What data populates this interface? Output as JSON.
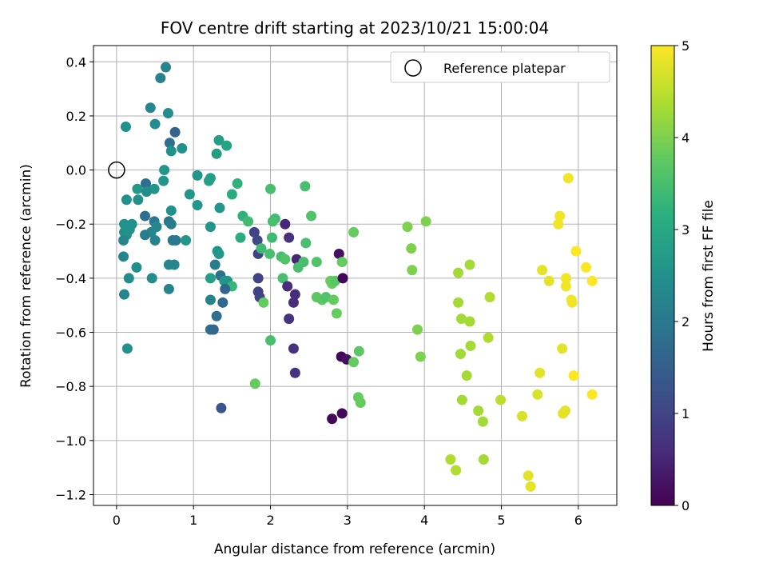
{
  "chart_data": {
    "type": "scatter",
    "title": "FOV centre drift starting at 2023/10/21 15:00:04",
    "xlabel": "Angular distance from reference (arcmin)",
    "ylabel": "Rotation from reference (arcmin)",
    "xlim": [
      -0.3,
      6.5
    ],
    "ylim": [
      -1.24,
      0.46
    ],
    "xticks": [
      0,
      1,
      2,
      3,
      4,
      5,
      6
    ],
    "xtick_labels": [
      "0",
      "1",
      "2",
      "3",
      "4",
      "5",
      "6"
    ],
    "yticks": [
      0.4,
      0.2,
      0.0,
      -0.2,
      -0.4,
      -0.6,
      -0.8,
      -1.0,
      -1.2
    ],
    "ytick_labels": [
      "0.4",
      "0.2",
      "0.0",
      "−0.2",
      "−0.4",
      "−0.6",
      "−0.8",
      "−1.0",
      "−1.2"
    ],
    "grid": true,
    "legend": {
      "label": "Reference platepar",
      "position": "upper right"
    },
    "reference_point": {
      "x": 0,
      "y": 0
    },
    "colorbar": {
      "label": "Hours from first FF file",
      "range": [
        0,
        5
      ],
      "ticks": [
        "0",
        "1",
        "2",
        "3",
        "4",
        "5"
      ],
      "colormap": "viridis"
    },
    "points": [
      [
        0.64,
        0.38,
        2.3
      ],
      [
        0.57,
        0.34,
        2.2
      ],
      [
        0.44,
        0.23,
        2.3
      ],
      [
        0.67,
        0.21,
        2.4
      ],
      [
        0.5,
        0.17,
        2.4
      ],
      [
        0.12,
        0.16,
        2.5
      ],
      [
        0.76,
        0.14,
        1.6
      ],
      [
        0.69,
        0.1,
        1.8
      ],
      [
        0.85,
        0.08,
        2.5
      ],
      [
        0.71,
        0.07,
        2.5
      ],
      [
        0.62,
        0.0,
        2.6
      ],
      [
        1.05,
        -0.02,
        2.6
      ],
      [
        0.61,
        -0.04,
        2.6
      ],
      [
        0.38,
        -0.05,
        1.8
      ],
      [
        0.27,
        -0.07,
        2.7
      ],
      [
        0.49,
        -0.07,
        2.6
      ],
      [
        0.39,
        -0.08,
        2.4
      ],
      [
        0.95,
        -0.09,
        2.6
      ],
      [
        0.28,
        -0.11,
        2.5
      ],
      [
        0.13,
        -0.11,
        2.5
      ],
      [
        1.05,
        -0.13,
        2.6
      ],
      [
        0.71,
        -0.15,
        2.5
      ],
      [
        0.37,
        -0.17,
        1.8
      ],
      [
        0.49,
        -0.19,
        2.0
      ],
      [
        0.68,
        -0.19,
        1.9
      ],
      [
        0.71,
        -0.2,
        2.1
      ],
      [
        0.52,
        -0.21,
        2.3
      ],
      [
        0.2,
        -0.2,
        2.5
      ],
      [
        0.1,
        -0.2,
        2.5
      ],
      [
        0.17,
        -0.22,
        2.5
      ],
      [
        0.1,
        -0.23,
        2.5
      ],
      [
        0.45,
        -0.23,
        2.3
      ],
      [
        0.37,
        -0.24,
        2.1
      ],
      [
        0.13,
        -0.24,
        2.5
      ],
      [
        0.09,
        -0.26,
        2.3
      ],
      [
        0.5,
        -0.26,
        2.2
      ],
      [
        0.73,
        -0.26,
        2.0
      ],
      [
        0.77,
        -0.26,
        2.0
      ],
      [
        0.9,
        -0.26,
        2.6
      ],
      [
        0.09,
        -0.32,
        2.3
      ],
      [
        0.26,
        -0.36,
        2.5
      ],
      [
        0.68,
        -0.35,
        2.3
      ],
      [
        0.75,
        -0.35,
        2.3
      ],
      [
        0.46,
        -0.4,
        2.4
      ],
      [
        0.16,
        -0.4,
        2.4
      ],
      [
        0.1,
        -0.46,
        2.3
      ],
      [
        0.68,
        -0.44,
        2.2
      ],
      [
        0.14,
        -0.66,
        2.5
      ],
      [
        1.22,
        -0.03,
        2.8
      ],
      [
        1.2,
        -0.04,
        2.8
      ],
      [
        1.33,
        0.11,
        2.8
      ],
      [
        1.3,
        0.06,
        2.8
      ],
      [
        1.43,
        0.09,
        2.9
      ],
      [
        1.34,
        -0.14,
        2.6
      ],
      [
        1.22,
        -0.21,
        2.6
      ],
      [
        1.57,
        -0.05,
        3.2
      ],
      [
        1.5,
        -0.09,
        3.1
      ],
      [
        1.64,
        -0.17,
        3.2
      ],
      [
        1.71,
        -0.19,
        3.4
      ],
      [
        1.61,
        -0.25,
        3.1
      ],
      [
        1.28,
        -0.35,
        2.1
      ],
      [
        1.33,
        -0.31,
        2.6
      ],
      [
        1.31,
        -0.3,
        2.6
      ],
      [
        1.35,
        -0.39,
        1.9
      ],
      [
        1.4,
        -0.41,
        2.6
      ],
      [
        1.44,
        -0.41,
        2.6
      ],
      [
        1.5,
        -0.43,
        3.3
      ],
      [
        1.41,
        -0.44,
        1.6
      ],
      [
        1.22,
        -0.4,
        2.8
      ],
      [
        1.22,
        -0.48,
        2.2
      ],
      [
        1.38,
        -0.49,
        1.7
      ],
      [
        1.3,
        -0.54,
        1.8
      ],
      [
        1.22,
        -0.59,
        1.8
      ],
      [
        1.26,
        -0.59,
        1.7
      ],
      [
        1.36,
        -0.88,
        1.3
      ],
      [
        1.79,
        -0.23,
        1.0
      ],
      [
        1.83,
        -0.26,
        1.1
      ],
      [
        1.84,
        -0.31,
        1.0
      ],
      [
        2.06,
        -0.18,
        3.4
      ],
      [
        2.03,
        -0.19,
        3.5
      ],
      [
        2.02,
        -0.25,
        3.4
      ],
      [
        2.19,
        -0.2,
        0.5
      ],
      [
        2.24,
        -0.25,
        0.7
      ],
      [
        1.88,
        -0.29,
        3.4
      ],
      [
        1.99,
        -0.31,
        3.5
      ],
      [
        2.14,
        -0.32,
        3.5
      ],
      [
        2.19,
        -0.33,
        3.6
      ],
      [
        2.34,
        -0.33,
        0.5
      ],
      [
        1.84,
        -0.4,
        1.0
      ],
      [
        1.84,
        -0.45,
        1.0
      ],
      [
        1.86,
        -0.47,
        1.0
      ],
      [
        1.91,
        -0.49,
        3.8
      ],
      [
        2.0,
        -0.63,
        3.5
      ],
      [
        1.8,
        -0.79,
        3.8
      ],
      [
        2.0,
        -0.07,
        3.5
      ],
      [
        2.16,
        -0.4,
        3.5
      ],
      [
        2.22,
        -0.43,
        0.6
      ],
      [
        2.32,
        -0.46,
        0.6
      ],
      [
        2.3,
        -0.49,
        0.6
      ],
      [
        2.24,
        -0.55,
        0.7
      ],
      [
        2.3,
        -0.66,
        0.7
      ],
      [
        2.32,
        -0.75,
        0.7
      ],
      [
        2.36,
        -0.36,
        3.5
      ],
      [
        2.43,
        -0.34,
        3.5
      ],
      [
        2.46,
        -0.27,
        3.5
      ],
      [
        2.45,
        -0.06,
        3.5
      ],
      [
        2.53,
        -0.17,
        3.6
      ],
      [
        2.6,
        -0.34,
        3.6
      ],
      [
        2.6,
        -0.47,
        3.7
      ],
      [
        2.67,
        -0.48,
        3.7
      ],
      [
        2.72,
        -0.47,
        3.6
      ],
      [
        2.78,
        -0.41,
        3.8
      ],
      [
        2.8,
        -0.42,
        3.8
      ],
      [
        2.84,
        -0.41,
        3.7
      ],
      [
        2.82,
        -0.48,
        3.8
      ],
      [
        2.86,
        -0.53,
        3.8
      ],
      [
        2.89,
        -0.31,
        0.2
      ],
      [
        2.94,
        -0.4,
        0.1
      ],
      [
        2.93,
        -0.34,
        3.8
      ],
      [
        2.92,
        -0.69,
        0.1
      ],
      [
        2.99,
        -0.7,
        0.2
      ],
      [
        3.08,
        -0.71,
        3.8
      ],
      [
        2.8,
        -0.92,
        0.1
      ],
      [
        2.93,
        -0.9,
        0.1
      ],
      [
        3.08,
        -0.23,
        3.8
      ],
      [
        3.15,
        -0.67,
        3.7
      ],
      [
        3.14,
        -0.84,
        3.8
      ],
      [
        3.17,
        -0.86,
        3.8
      ],
      [
        3.78,
        -0.21,
        4.0
      ],
      [
        3.83,
        -0.29,
        4.0
      ],
      [
        3.84,
        -0.37,
        4.0
      ],
      [
        3.91,
        -0.59,
        4.0
      ],
      [
        3.95,
        -0.69,
        4.0
      ],
      [
        4.02,
        -0.19,
        4.0
      ],
      [
        4.44,
        -0.38,
        4.3
      ],
      [
        4.44,
        -0.49,
        4.3
      ],
      [
        4.48,
        -0.55,
        4.3
      ],
      [
        4.47,
        -0.68,
        4.3
      ],
      [
        4.49,
        -0.85,
        4.3
      ],
      [
        4.59,
        -0.35,
        4.3
      ],
      [
        4.59,
        -0.56,
        4.3
      ],
      [
        4.6,
        -0.65,
        4.3
      ],
      [
        4.55,
        -0.76,
        4.3
      ],
      [
        4.7,
        -0.89,
        4.3
      ],
      [
        4.76,
        -0.93,
        4.3
      ],
      [
        4.83,
        -0.62,
        4.4
      ],
      [
        4.85,
        -0.47,
        4.4
      ],
      [
        4.99,
        -0.85,
        4.5
      ],
      [
        4.34,
        -1.07,
        4.4
      ],
      [
        4.41,
        -1.11,
        4.4
      ],
      [
        4.77,
        -1.07,
        4.3
      ],
      [
        5.27,
        -0.91,
        4.7
      ],
      [
        5.35,
        -1.13,
        4.8
      ],
      [
        5.38,
        -1.17,
        4.8
      ],
      [
        5.47,
        -0.83,
        4.7
      ],
      [
        5.5,
        -0.75,
        4.8
      ],
      [
        5.53,
        -0.37,
        4.8
      ],
      [
        5.62,
        -0.41,
        4.8
      ],
      [
        5.76,
        -0.17,
        4.9
      ],
      [
        5.74,
        -0.2,
        4.9
      ],
      [
        5.79,
        -0.66,
        4.8
      ],
      [
        5.8,
        -0.9,
        4.8
      ],
      [
        5.83,
        -0.89,
        4.8
      ],
      [
        5.84,
        -0.4,
        4.9
      ],
      [
        5.84,
        -0.43,
        4.9
      ],
      [
        5.87,
        -0.03,
        4.9
      ],
      [
        5.91,
        -0.48,
        4.9
      ],
      [
        5.92,
        -0.49,
        4.9
      ],
      [
        5.94,
        -0.76,
        5.0
      ],
      [
        5.97,
        -0.3,
        5.0
      ],
      [
        6.1,
        -0.36,
        5.0
      ],
      [
        6.18,
        -0.41,
        5.0
      ],
      [
        6.18,
        -0.83,
        5.0
      ]
    ]
  }
}
